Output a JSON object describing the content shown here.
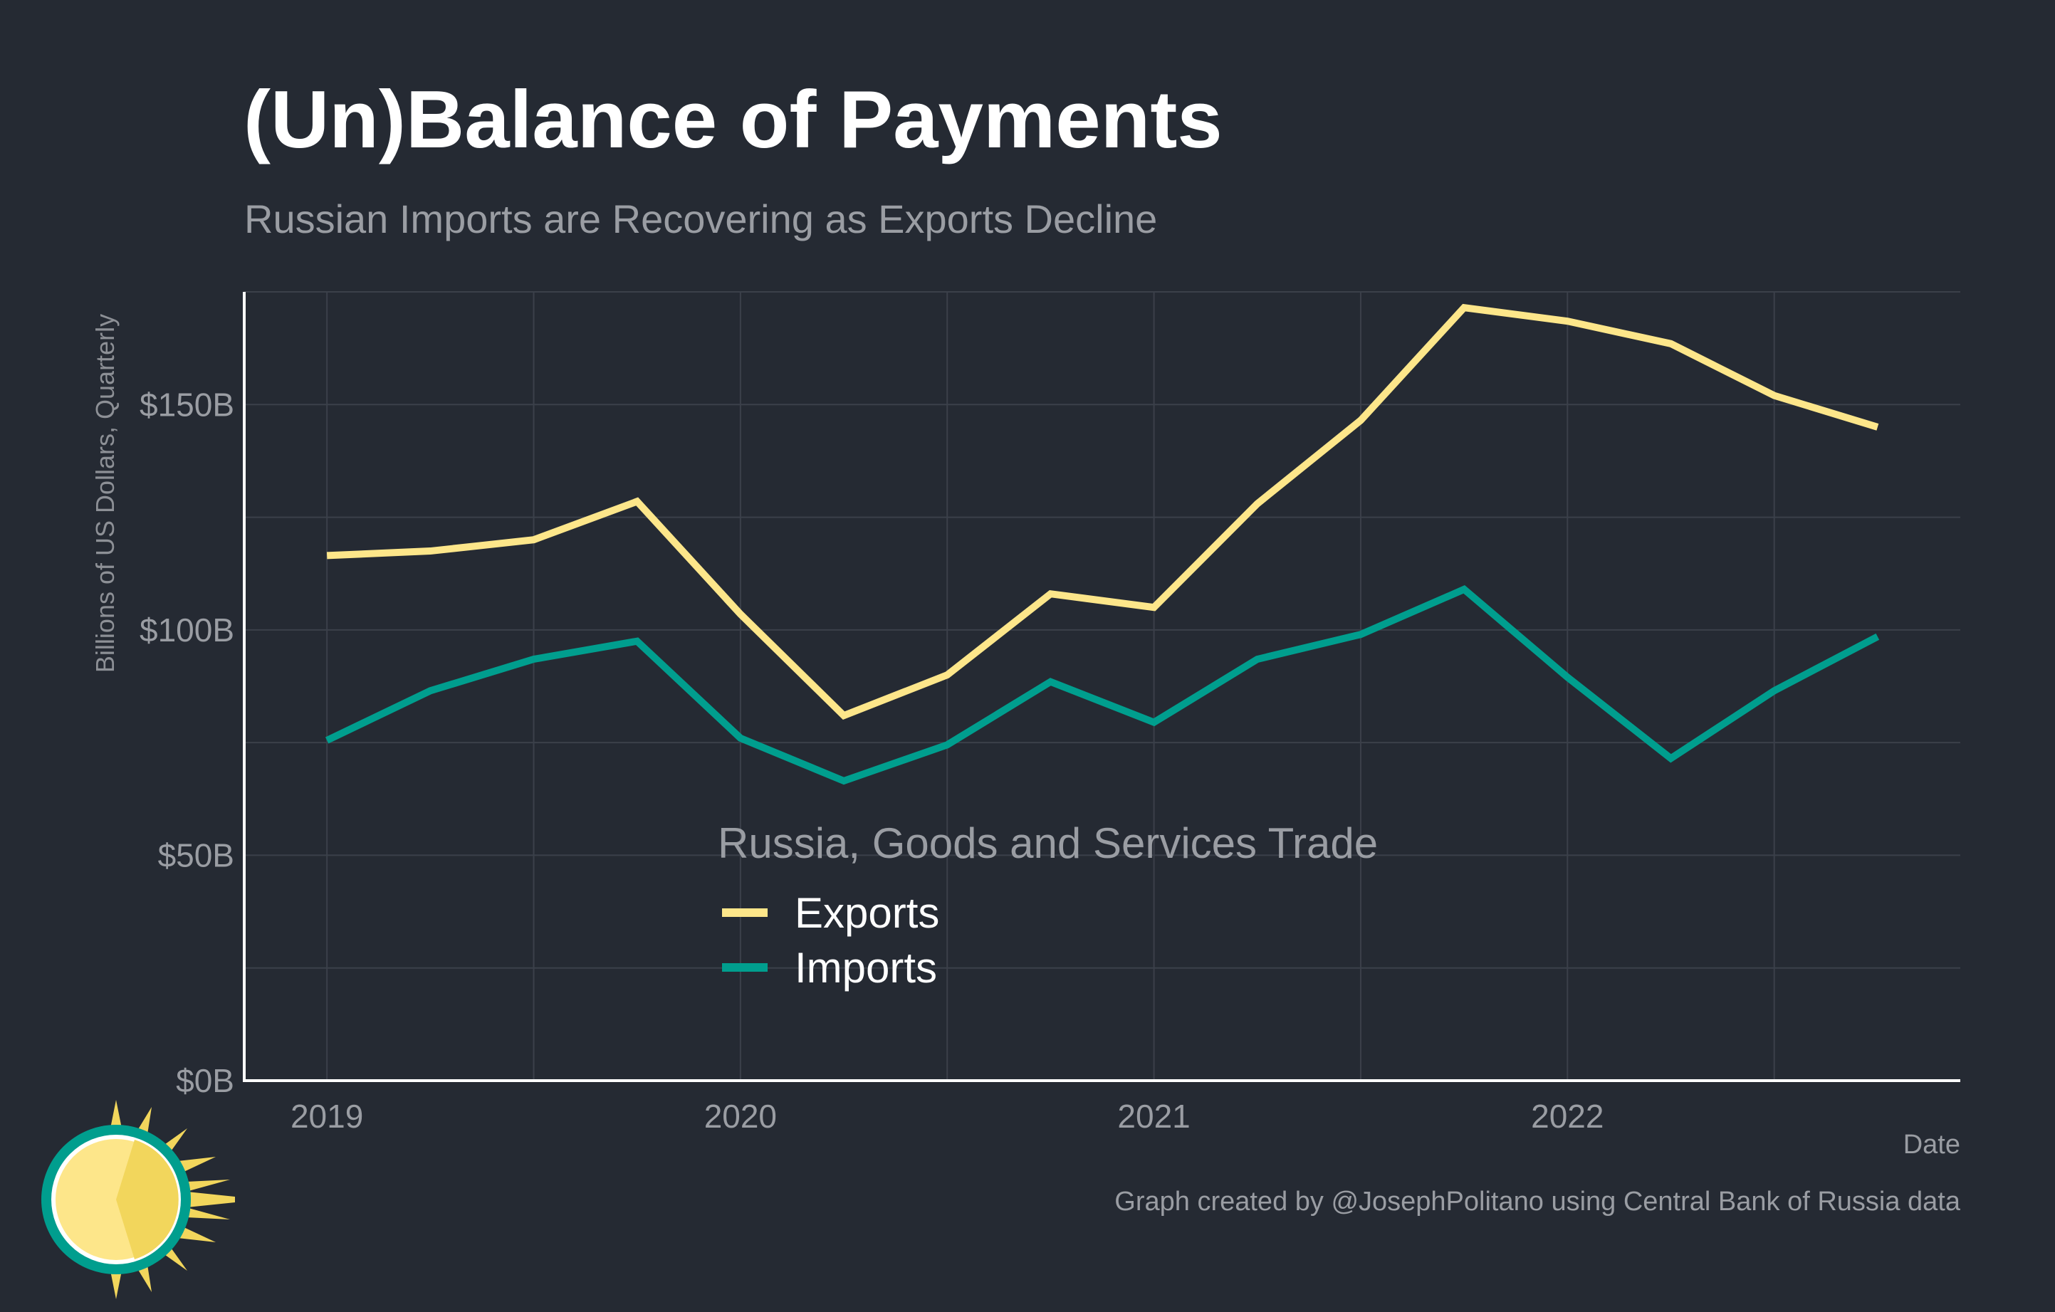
{
  "title": "(Un)Balance of Payments",
  "subtitle": "Russian Imports are Recovering as Exports Decline",
  "caption": "Graph created by @JosephPolitano using Central Bank of Russia data",
  "colors": {
    "background": "#252a33",
    "exports": "#fde68a",
    "imports": "#009e8e"
  },
  "chart_data": {
    "type": "line",
    "title": "(Un)Balance of Payments",
    "subtitle": "Russian Imports are Recovering as Exports Decline",
    "xlabel": "Date",
    "ylabel": "Billions of US Dollars, Quarterly",
    "x_ticks": [
      2019,
      2020,
      2021,
      2022
    ],
    "x_tick_labels": [
      "2019",
      "2020",
      "2021",
      "2022"
    ],
    "xlim": [
      2018.8,
      2022.95
    ],
    "y_ticks": [
      0,
      50,
      100,
      150
    ],
    "y_tick_labels": [
      "$0B",
      "$50B",
      "$100B",
      "$150B"
    ],
    "ylim": [
      0,
      175
    ],
    "grid": true,
    "legend_title": "Russia, Goods and Services Trade",
    "legend_position": "center",
    "x": [
      2019.0,
      2019.25,
      2019.5,
      2019.75,
      2020.0,
      2020.25,
      2020.5,
      2020.75,
      2021.0,
      2021.25,
      2021.5,
      2021.75,
      2022.0,
      2022.25,
      2022.5,
      2022.75
    ],
    "series": [
      {
        "name": "Exports",
        "color": "#fde68a",
        "values": [
          116.5,
          117.5,
          120.0,
          128.5,
          103.5,
          81.0,
          90.0,
          108.0,
          105.0,
          128.0,
          146.5,
          171.5,
          168.5,
          163.5,
          152.0,
          145.0
        ]
      },
      {
        "name": "Imports",
        "color": "#009e8e",
        "values": [
          75.5,
          86.5,
          93.5,
          97.5,
          76.0,
          66.5,
          74.5,
          88.5,
          79.5,
          93.5,
          99.0,
          109.0,
          89.5,
          71.5,
          86.5,
          98.5
        ]
      }
    ]
  }
}
